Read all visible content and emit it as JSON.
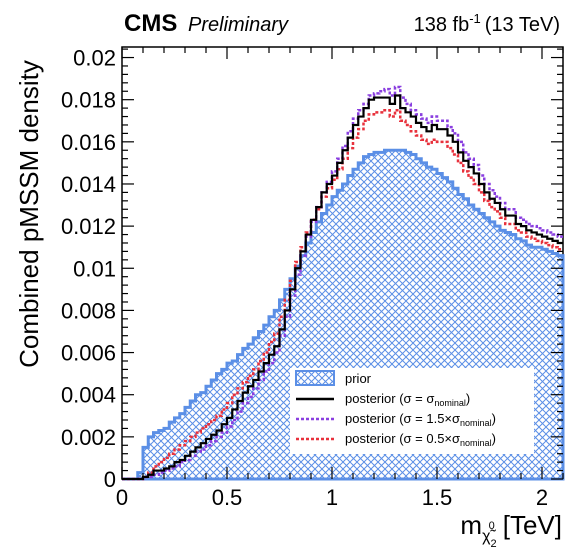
{
  "header": {
    "experiment": "CMS",
    "status": "Preliminary",
    "lumi": "138 fb",
    "lumi_exp": "-1",
    "energy": "(13 TeV)"
  },
  "chart_data": {
    "type": "area",
    "xlabel_main": "m",
    "xlabel_sub": "χ̃",
    "xlabel_sub_sub": "2",
    "xlabel_sup": "0",
    "xlabel_unit": "[TeV]",
    "ylabel": "Combined pMSSM density",
    "xlim": [
      0,
      2.1
    ],
    "ylim": [
      0,
      0.0205
    ],
    "bin_width": 0.025,
    "x_ticks": [
      "0",
      "0.5",
      "1",
      "1.5",
      "2"
    ],
    "y_ticks": [
      "0",
      "0.002",
      "0.004",
      "0.006",
      "0.008",
      "0.01",
      "0.012",
      "0.014",
      "0.016",
      "0.018",
      "0.02"
    ],
    "colors": {
      "prior": "#5b8fe6",
      "posterior": "#000000",
      "posterior_wide": "#8a3fe0",
      "posterior_narrow": "#e8313c"
    },
    "legend": {
      "prior": "prior",
      "posterior_pre": "posterior (σ = σ",
      "posterior_sub": "nominal",
      "posterior_post": ")",
      "wide_pre": "posterior (σ = 1.5×σ",
      "wide_sub": "nominal",
      "wide_post": ")",
      "narrow_pre": "posterior (σ = 0.5×σ",
      "narrow_sub": "nominal",
      "narrow_post": ")"
    },
    "series": [
      {
        "key": "prior",
        "values": [
          0,
          0,
          0,
          0.0003,
          0.0015,
          0.002,
          0.0022,
          0.0023,
          0.0024,
          0.0027,
          0.0029,
          0.0031,
          0.0034,
          0.0037,
          0.004,
          0.0041,
          0.0044,
          0.0047,
          0.005,
          0.0052,
          0.0055,
          0.0056,
          0.0059,
          0.0062,
          0.0064,
          0.0067,
          0.007,
          0.0073,
          0.0077,
          0.008,
          0.0085,
          0.009,
          0.0095,
          0.0101,
          0.0106,
          0.0112,
          0.0117,
          0.0122,
          0.0126,
          0.013,
          0.0134,
          0.0137,
          0.014,
          0.0144,
          0.0147,
          0.015,
          0.0153,
          0.0154,
          0.0155,
          0.0155,
          0.0156,
          0.0156,
          0.0156,
          0.0156,
          0.0155,
          0.0154,
          0.0152,
          0.015,
          0.0148,
          0.0147,
          0.0145,
          0.0143,
          0.0141,
          0.0138,
          0.0135,
          0.0133,
          0.013,
          0.0128,
          0.0126,
          0.0124,
          0.0122,
          0.012,
          0.0118,
          0.0117,
          0.0116,
          0.0114,
          0.0113,
          0.0111,
          0.011,
          0.011,
          0.0109,
          0.0108,
          0.0107,
          0.0106
        ]
      },
      {
        "key": "posterior",
        "values": [
          0,
          0,
          0,
          0,
          0.0001,
          0.0002,
          0.0004,
          0.0004,
          0.0005,
          0.0006,
          0.0008,
          0.0009,
          0.0011,
          0.0013,
          0.0015,
          0.0017,
          0.0019,
          0.0021,
          0.0023,
          0.0026,
          0.0029,
          0.0033,
          0.0037,
          0.0041,
          0.0044,
          0.0047,
          0.0051,
          0.0055,
          0.0059,
          0.0063,
          0.0071,
          0.008,
          0.009,
          0.01,
          0.0108,
          0.0116,
          0.0123,
          0.0129,
          0.0136,
          0.014,
          0.0144,
          0.015,
          0.0156,
          0.0162,
          0.0168,
          0.0172,
          0.0176,
          0.018,
          0.0181,
          0.0181,
          0.0181,
          0.0178,
          0.0182,
          0.0176,
          0.0174,
          0.0172,
          0.0169,
          0.0167,
          0.0165,
          0.0168,
          0.0166,
          0.0166,
          0.0163,
          0.016,
          0.0155,
          0.0151,
          0.0148,
          0.0145,
          0.014,
          0.0136,
          0.0133,
          0.0131,
          0.0128,
          0.0125,
          0.0125,
          0.0121,
          0.012,
          0.0118,
          0.0117,
          0.0116,
          0.0115,
          0.0114,
          0.0113,
          0.0112
        ]
      },
      {
        "key": "posterior_wide",
        "values": [
          0,
          0,
          0,
          0,
          0.0001,
          0.0001,
          0.0002,
          0.0003,
          0.0004,
          0.0005,
          0.0006,
          0.0008,
          0.0009,
          0.0011,
          0.0013,
          0.0014,
          0.0016,
          0.0018,
          0.002,
          0.0022,
          0.0025,
          0.0028,
          0.0032,
          0.0036,
          0.0039,
          0.0043,
          0.0047,
          0.0051,
          0.0055,
          0.006,
          0.0068,
          0.0077,
          0.0087,
          0.0097,
          0.0106,
          0.0115,
          0.0122,
          0.0129,
          0.0136,
          0.0141,
          0.0146,
          0.0152,
          0.0158,
          0.0165,
          0.0171,
          0.0175,
          0.0178,
          0.0182,
          0.0183,
          0.0184,
          0.0185,
          0.0182,
          0.0186,
          0.0181,
          0.0178,
          0.0175,
          0.0173,
          0.0171,
          0.0169,
          0.0172,
          0.017,
          0.017,
          0.0167,
          0.0164,
          0.016,
          0.0155,
          0.0152,
          0.0149,
          0.0144,
          0.014,
          0.0137,
          0.0134,
          0.0131,
          0.0128,
          0.0128,
          0.0124,
          0.0123,
          0.0121,
          0.012,
          0.0119,
          0.0118,
          0.0117,
          0.0116,
          0.0115
        ]
      },
      {
        "key": "posterior_narrow",
        "values": [
          0,
          0,
          0,
          0,
          0.0001,
          0.0003,
          0.0006,
          0.0008,
          0.001,
          0.0012,
          0.0014,
          0.0016,
          0.0018,
          0.002,
          0.0022,
          0.0024,
          0.0026,
          0.0028,
          0.003,
          0.0033,
          0.0036,
          0.004,
          0.0043,
          0.0046,
          0.0049,
          0.0052,
          0.0056,
          0.006,
          0.0065,
          0.0069,
          0.0077,
          0.0085,
          0.0094,
          0.0103,
          0.011,
          0.0117,
          0.0123,
          0.0128,
          0.0134,
          0.0138,
          0.0142,
          0.0147,
          0.0152,
          0.0157,
          0.0162,
          0.0166,
          0.017,
          0.0173,
          0.0174,
          0.0174,
          0.0175,
          0.0172,
          0.0175,
          0.017,
          0.0168,
          0.0165,
          0.0163,
          0.0161,
          0.0159,
          0.0161,
          0.016,
          0.016,
          0.0157,
          0.0154,
          0.015,
          0.0146,
          0.0143,
          0.014,
          0.0136,
          0.0132,
          0.0129,
          0.0127,
          0.0124,
          0.0121,
          0.0121,
          0.0118,
          0.0117,
          0.0115,
          0.0114,
          0.0113,
          0.0112,
          0.0111,
          0.011,
          0.0109
        ]
      }
    ]
  }
}
